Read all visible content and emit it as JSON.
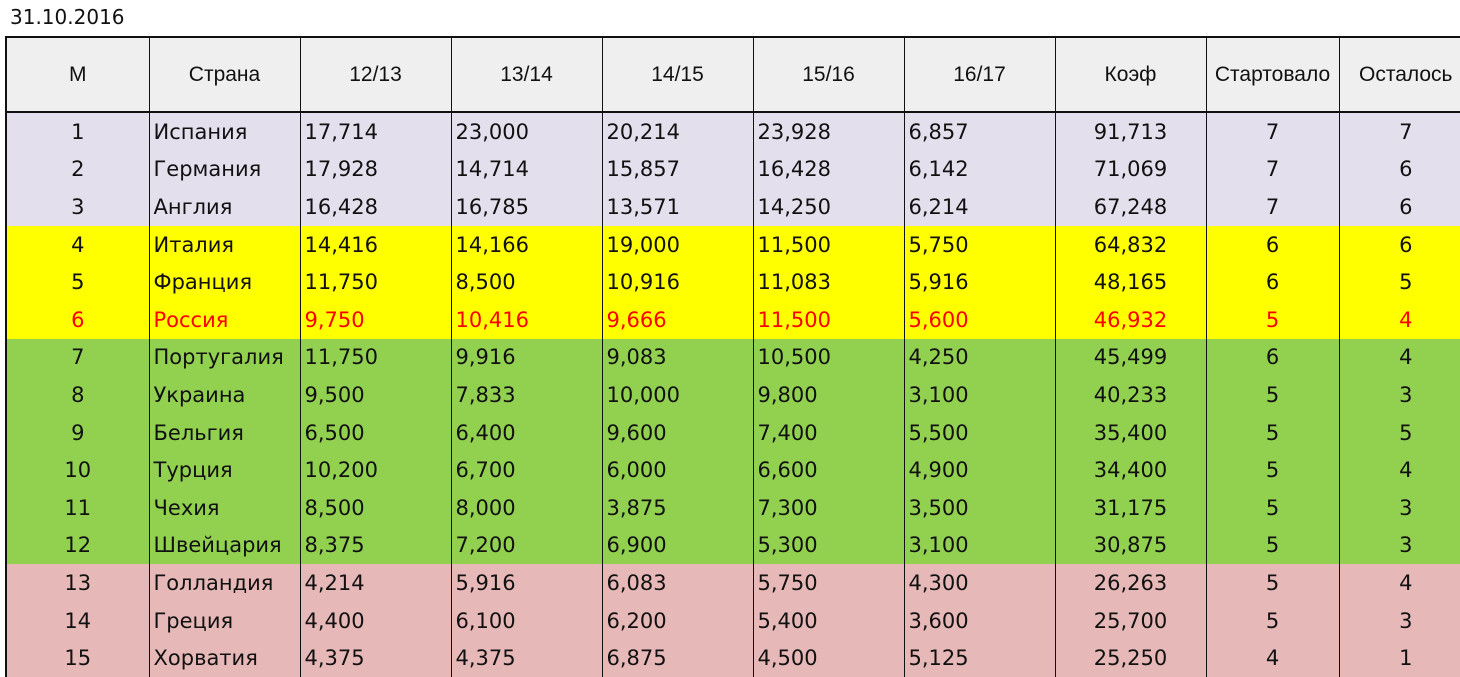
{
  "date": "31.10.2016",
  "columns": [
    "М",
    "Страна",
    "12/13",
    "13/14",
    "14/15",
    "15/16",
    "16/17",
    "Коэф",
    "Стартовало",
    "Осталось"
  ],
  "colors": {
    "top_group": "#e4dfec",
    "second_group": "#ffff00",
    "third_group": "#92d050",
    "bottom_group": "#e6b8b7",
    "highlight_text": "#ff0000"
  },
  "rows": [
    {
      "m": "1",
      "country": "Испания",
      "s1213": "17,714",
      "s1314": "23,000",
      "s1415": "20,214",
      "s1516": "23,928",
      "s1617": "6,857",
      "coef": "91,713",
      "started": "7",
      "left": "7"
    },
    {
      "m": "2",
      "country": "Германия",
      "s1213": "17,928",
      "s1314": "14,714",
      "s1415": "15,857",
      "s1516": "16,428",
      "s1617": "6,142",
      "coef": "71,069",
      "started": "7",
      "left": "6"
    },
    {
      "m": "3",
      "country": "Англия",
      "s1213": "16,428",
      "s1314": "16,785",
      "s1415": "13,571",
      "s1516": "14,250",
      "s1617": "6,214",
      "coef": "67,248",
      "started": "7",
      "left": "6"
    },
    {
      "m": "4",
      "country": "Италия",
      "s1213": "14,416",
      "s1314": "14,166",
      "s1415": "19,000",
      "s1516": "11,500",
      "s1617": "5,750",
      "coef": "64,832",
      "started": "6",
      "left": "6"
    },
    {
      "m": "5",
      "country": "Франция",
      "s1213": "11,750",
      "s1314": "8,500",
      "s1415": "10,916",
      "s1516": "11,083",
      "s1617": "5,916",
      "coef": "48,165",
      "started": "6",
      "left": "5"
    },
    {
      "m": "6",
      "country": "Россия",
      "s1213": "9,750",
      "s1314": "10,416",
      "s1415": "9,666",
      "s1516": "11,500",
      "s1617": "5,600",
      "coef": "46,932",
      "started": "5",
      "left": "4"
    },
    {
      "m": "7",
      "country": "Португалия",
      "s1213": "11,750",
      "s1314": "9,916",
      "s1415": "9,083",
      "s1516": "10,500",
      "s1617": "4,250",
      "coef": "45,499",
      "started": "6",
      "left": "4"
    },
    {
      "m": "8",
      "country": "Украина",
      "s1213": "9,500",
      "s1314": "7,833",
      "s1415": "10,000",
      "s1516": "9,800",
      "s1617": "3,100",
      "coef": "40,233",
      "started": "5",
      "left": "3"
    },
    {
      "m": "9",
      "country": "Бельгия",
      "s1213": "6,500",
      "s1314": "6,400",
      "s1415": "9,600",
      "s1516": "7,400",
      "s1617": "5,500",
      "coef": "35,400",
      "started": "5",
      "left": "5"
    },
    {
      "m": "10",
      "country": "Турция",
      "s1213": "10,200",
      "s1314": "6,700",
      "s1415": "6,000",
      "s1516": "6,600",
      "s1617": "4,900",
      "coef": "34,400",
      "started": "5",
      "left": "4"
    },
    {
      "m": "11",
      "country": "Чехия",
      "s1213": "8,500",
      "s1314": "8,000",
      "s1415": "3,875",
      "s1516": "7,300",
      "s1617": "3,500",
      "coef": "31,175",
      "started": "5",
      "left": "3"
    },
    {
      "m": "12",
      "country": "Швейцария",
      "s1213": "8,375",
      "s1314": "7,200",
      "s1415": "6,900",
      "s1516": "5,300",
      "s1617": "3,100",
      "coef": "30,875",
      "started": "5",
      "left": "3"
    },
    {
      "m": "13",
      "country": "Голландия",
      "s1213": "4,214",
      "s1314": "5,916",
      "s1415": "6,083",
      "s1516": "5,750",
      "s1617": "4,300",
      "coef": "26,263",
      "started": "5",
      "left": "4"
    },
    {
      "m": "14",
      "country": "Греция",
      "s1213": "4,400",
      "s1314": "6,100",
      "s1415": "6,200",
      "s1516": "5,400",
      "s1617": "3,600",
      "coef": "25,700",
      "started": "5",
      "left": "3"
    },
    {
      "m": "15",
      "country": "Хорватия",
      "s1213": "4,375",
      "s1314": "4,375",
      "s1415": "6,875",
      "s1516": "4,500",
      "s1617": "5,125",
      "coef": "25,250",
      "started": "4",
      "left": "1"
    }
  ]
}
